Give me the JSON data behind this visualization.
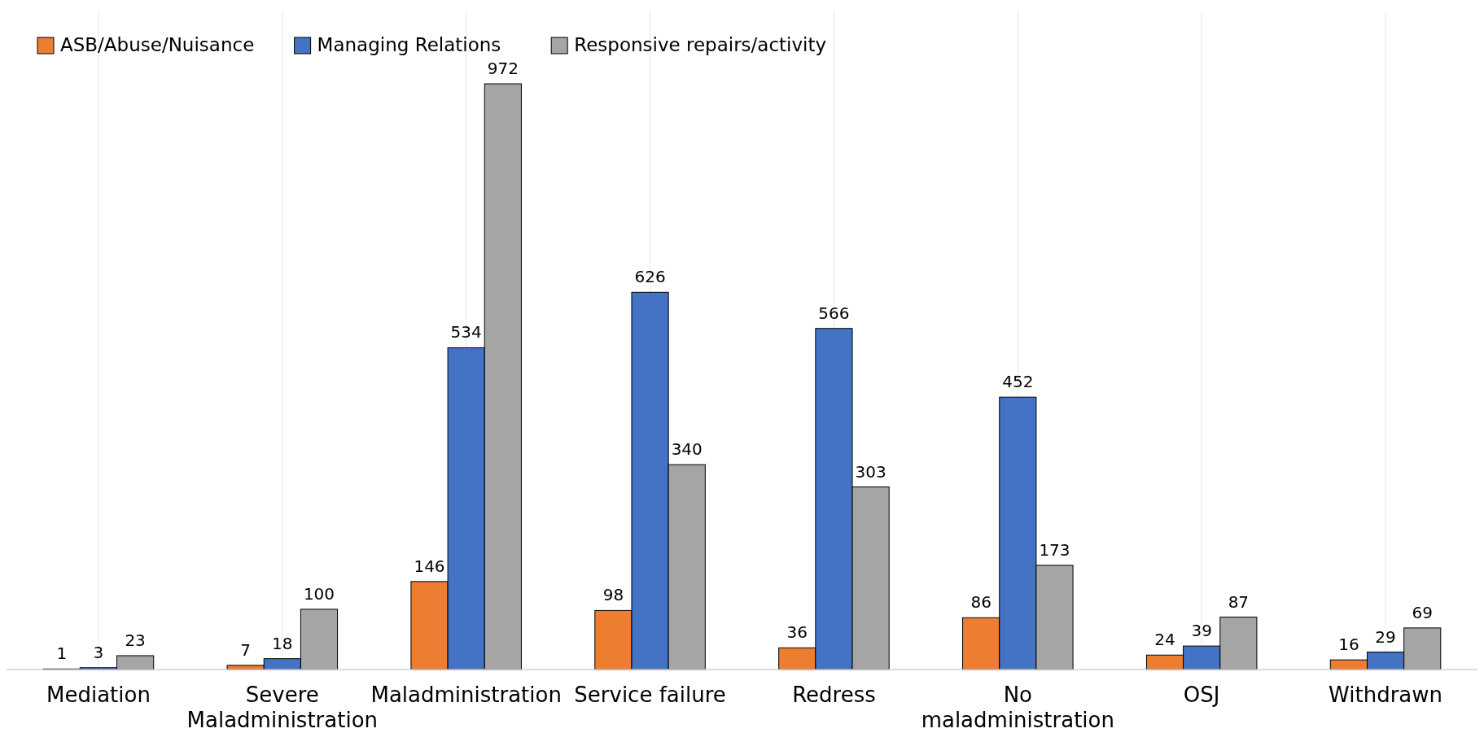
{
  "chart_data": {
    "type": "bar",
    "categories": [
      "Mediation",
      "Severe Maladministration",
      "Maladministration",
      "Service failure",
      "Redress",
      "No maladministration",
      "OSJ",
      "Withdrawn"
    ],
    "series": [
      {
        "name": "ASB/Abuse/Nuisance",
        "color": "#ed7d31",
        "values": [
          1,
          7,
          146,
          98,
          36,
          86,
          24,
          16
        ]
      },
      {
        "name": "Managing Relations",
        "color": "#4472c4",
        "values": [
          3,
          18,
          534,
          626,
          566,
          452,
          39,
          29
        ]
      },
      {
        "name": "Responsive repairs/activity",
        "color": "#a5a5a5",
        "values": [
          23,
          100,
          972,
          340,
          303,
          173,
          87,
          69
        ]
      }
    ],
    "data_labels": true,
    "grid": "x",
    "legend": "top left"
  }
}
